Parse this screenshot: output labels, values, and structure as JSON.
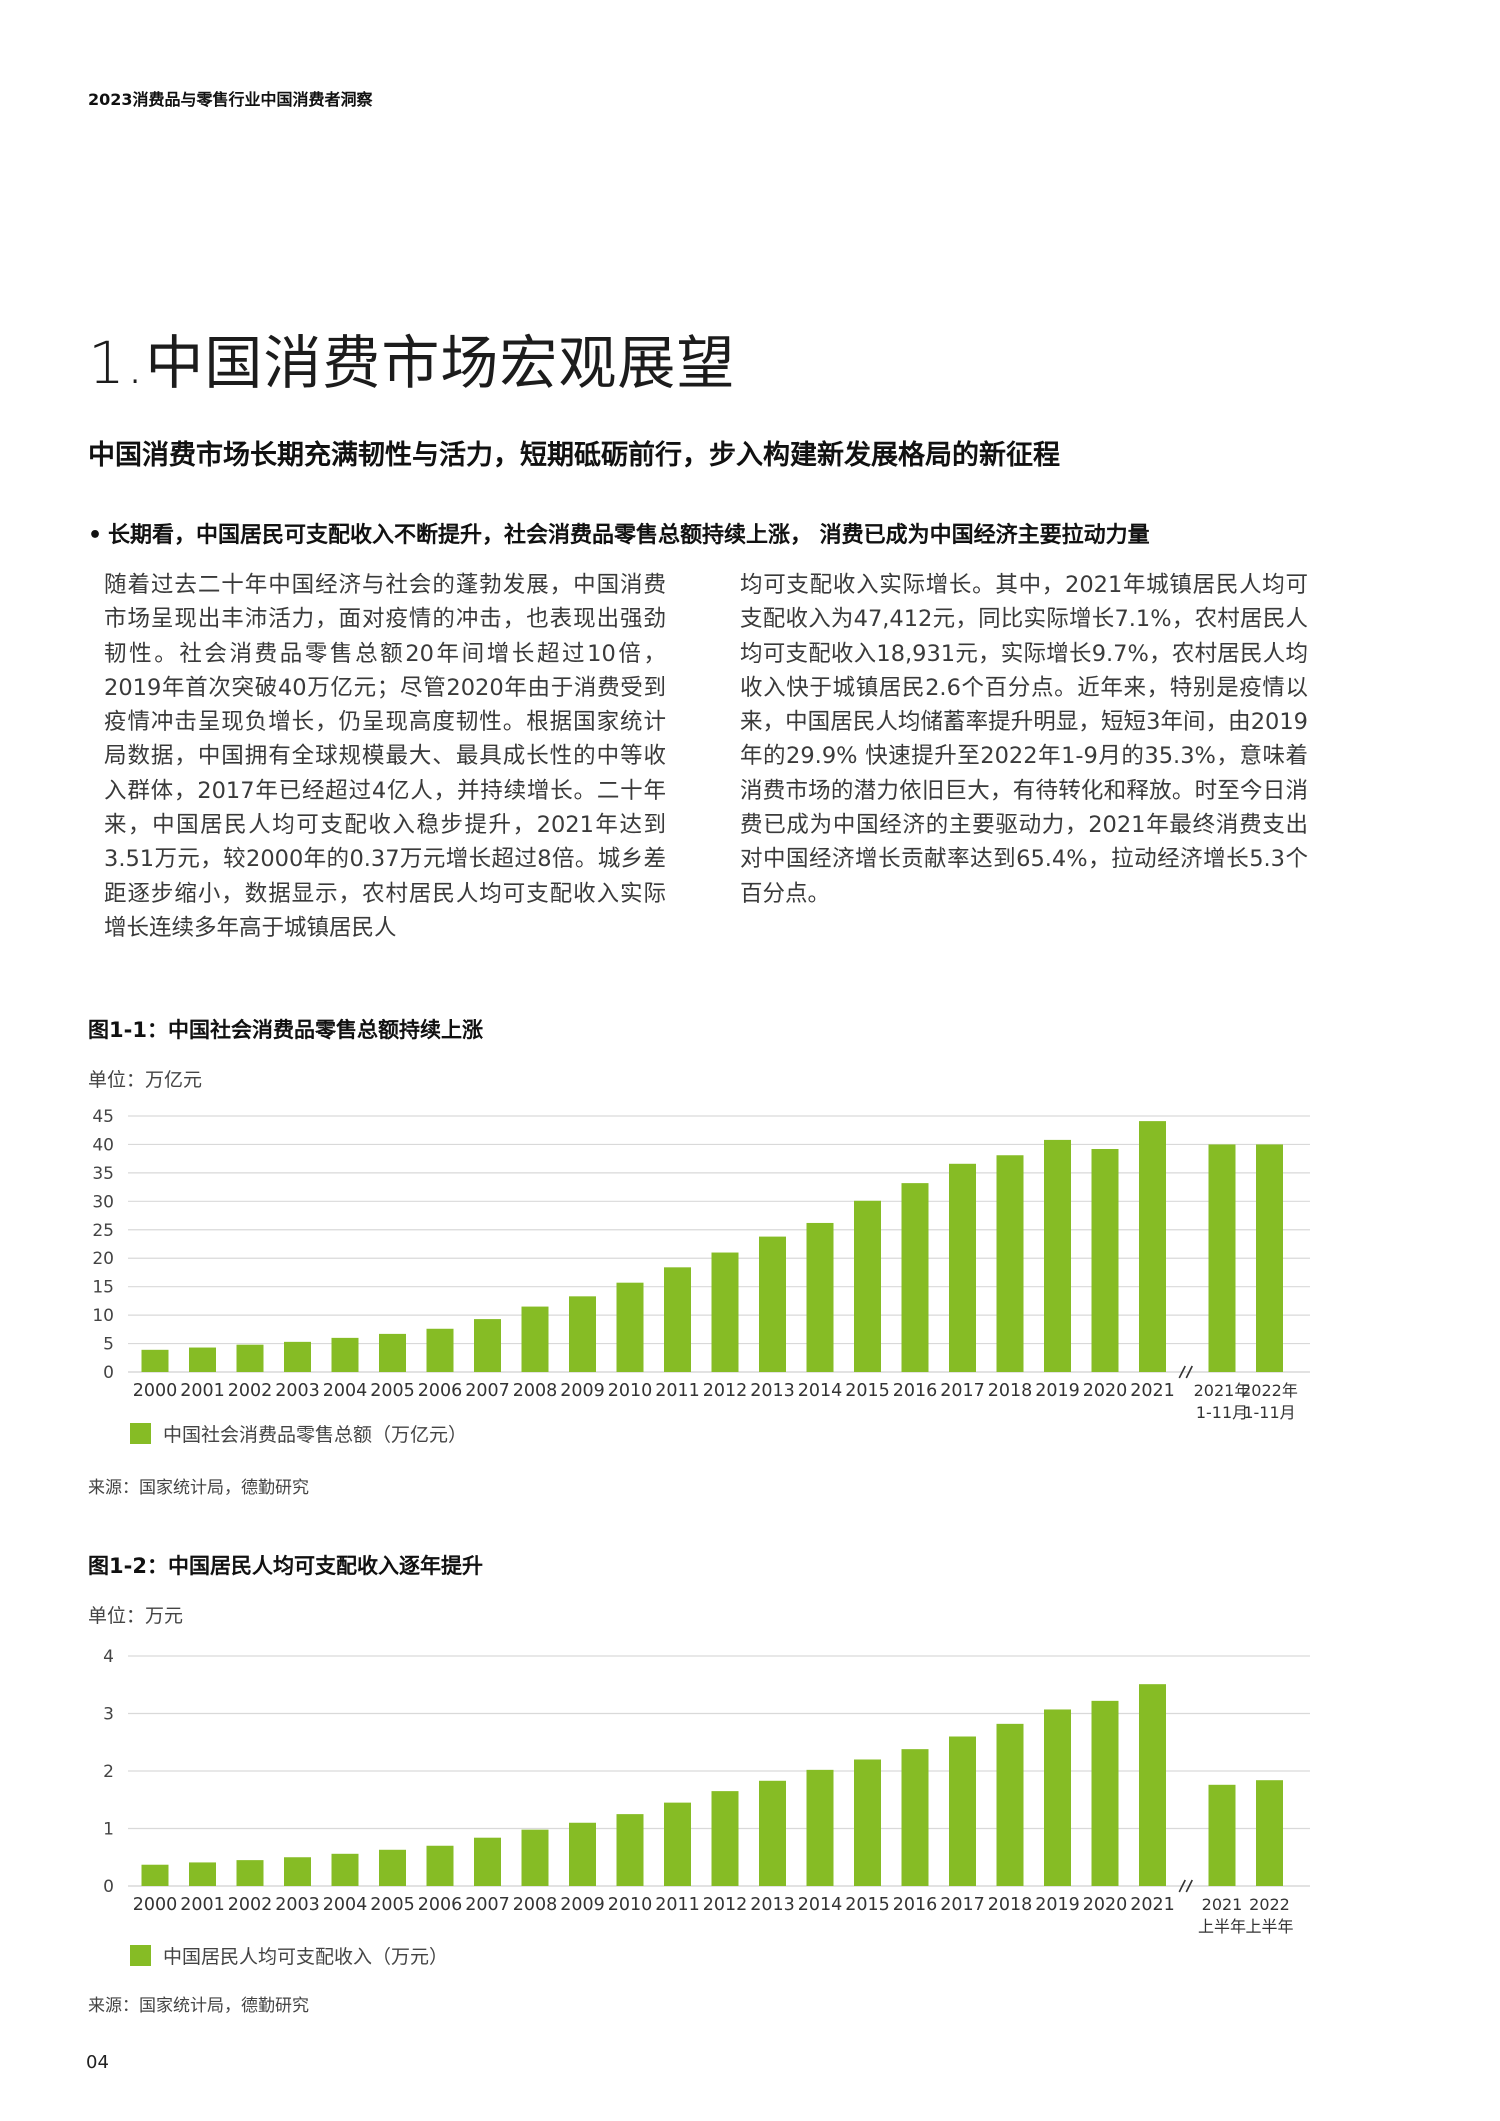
{
  "header": {
    "report_title": "2023消费品与零售行业中国消费者洞察"
  },
  "section": {
    "title": "1.中国消费市场宏观展望",
    "subtitle": "中国消费市场长期充满韧性与活力，短期砥砺前行，步入构建新发展格局的新征程",
    "bullet_marker": "•",
    "bullet": "长期看，中国居民可支配收入不断提升，社会消费品零售总额持续上涨，  消费已成为中国经济主要拉动力量"
  },
  "body": {
    "paragraph_left": "随着过去二十年中国经济与社会的蓬勃发展，中国消费市场呈现出丰沛活力，面对疫情的冲击，也表现出强劲韧性。社会消费品零售总额20年间增长超过10倍，2019年首次突破40万亿元；尽管2020年由于消费受到疫情冲击呈现负增长，仍呈现高度韧性。根据国家统计局数据，中国拥有全球规模最大、最具成长性的中等收入群体，2017年已经超过4亿人，并持续增长。二十年来，中国居民人均可支配收入稳步提升，2021年达到3.51万元，较2000年的0.37万元增长超过8倍。城乡差距逐步缩小，数据显示，农村居民人均可支配收入实际增长连续多年高于城镇居民人",
    "paragraph_right": "均可支配收入实际增长。其中，2021年城镇居民人均可支配收入为47,412元，同比实际增长7.1%，农村居民人均可支配收入18,931元，实际增长9.7%，农村居民人均收入快于城镇居民2.6个百分点。近年来，特别是疫情以来，中国居民人均储蓄率提升明显，短短3年间，由2019年的29.9% 快速提升至2022年1-9月的35.3%，意味着消费市场的潜力依旧巨大，有待转化和释放。时至今日消费已成为中国经济的主要驱动力，2021年最终消费支出对中国经济增长贡献率达到65.4%，拉动经济增长5.3个百分点。"
  },
  "figure1": {
    "title": "图1-1：中国社会消费品零售总额持续上涨",
    "unit": "单位：万亿元",
    "legend": "中国社会消费品零售总额（万亿元）",
    "source": "来源：国家统计局，德勤研究"
  },
  "figure2": {
    "title": "图1-2：中国居民人均可支配收入逐年提升",
    "unit": "单位：万元",
    "legend": "中国居民人均可支配收入（万元）",
    "source": "来源：国家统计局，德勤研究"
  },
  "page": {
    "number": "04"
  },
  "colors": {
    "bar": "#86bc25",
    "grid": "#d9d9d9",
    "text": "#1a1a1a"
  },
  "chart_data": [
    {
      "type": "bar",
      "title": "图1-1：中国社会消费品零售总额持续上涨",
      "ylabel": "单位：万亿元",
      "xlabel": "",
      "ylim": [
        0,
        45
      ],
      "yticks": [
        0,
        5,
        10,
        15,
        20,
        25,
        30,
        35,
        40,
        45
      ],
      "grid": true,
      "axis_break_before_index": 22,
      "categories": [
        "2000",
        "2001",
        "2002",
        "2003",
        "2004",
        "2005",
        "2006",
        "2007",
        "2008",
        "2009",
        "2010",
        "2011",
        "2012",
        "2013",
        "2014",
        "2015",
        "2016",
        "2017",
        "2018",
        "2019",
        "2020",
        "2021",
        [
          "2021年",
          "1-11月"
        ],
        [
          "2022年",
          "1-11月"
        ]
      ],
      "series": [
        {
          "name": "中国社会消费品零售总额（万亿元）",
          "values": [
            3.9,
            4.3,
            4.8,
            5.3,
            6.0,
            6.7,
            7.6,
            9.3,
            11.5,
            13.3,
            15.7,
            18.4,
            21.0,
            23.8,
            26.2,
            30.1,
            33.2,
            36.6,
            38.1,
            40.8,
            39.2,
            44.1,
            40.0,
            40.0
          ]
        }
      ]
    },
    {
      "type": "bar",
      "title": "图1-2：中国居民人均可支配收入逐年提升",
      "ylabel": "单位：万元",
      "xlabel": "",
      "ylim": [
        0,
        4
      ],
      "yticks": [
        0,
        1,
        2,
        3,
        4
      ],
      "grid": true,
      "axis_break_before_index": 22,
      "categories": [
        "2000",
        "2001",
        "2002",
        "2003",
        "2004",
        "2005",
        "2006",
        "2007",
        "2008",
        "2009",
        "2010",
        "2011",
        "2012",
        "2013",
        "2014",
        "2015",
        "2016",
        "2017",
        "2018",
        "2019",
        "2020",
        "2021",
        [
          "2021",
          "上半年"
        ],
        [
          "2022",
          "上半年"
        ]
      ],
      "series": [
        {
          "name": "中国居民人均可支配收入（万元）",
          "values": [
            0.37,
            0.41,
            0.45,
            0.5,
            0.56,
            0.63,
            0.7,
            0.84,
            0.98,
            1.1,
            1.25,
            1.45,
            1.65,
            1.83,
            2.02,
            2.2,
            2.38,
            2.6,
            2.82,
            3.07,
            3.22,
            3.51,
            1.76,
            1.84
          ]
        }
      ]
    }
  ]
}
